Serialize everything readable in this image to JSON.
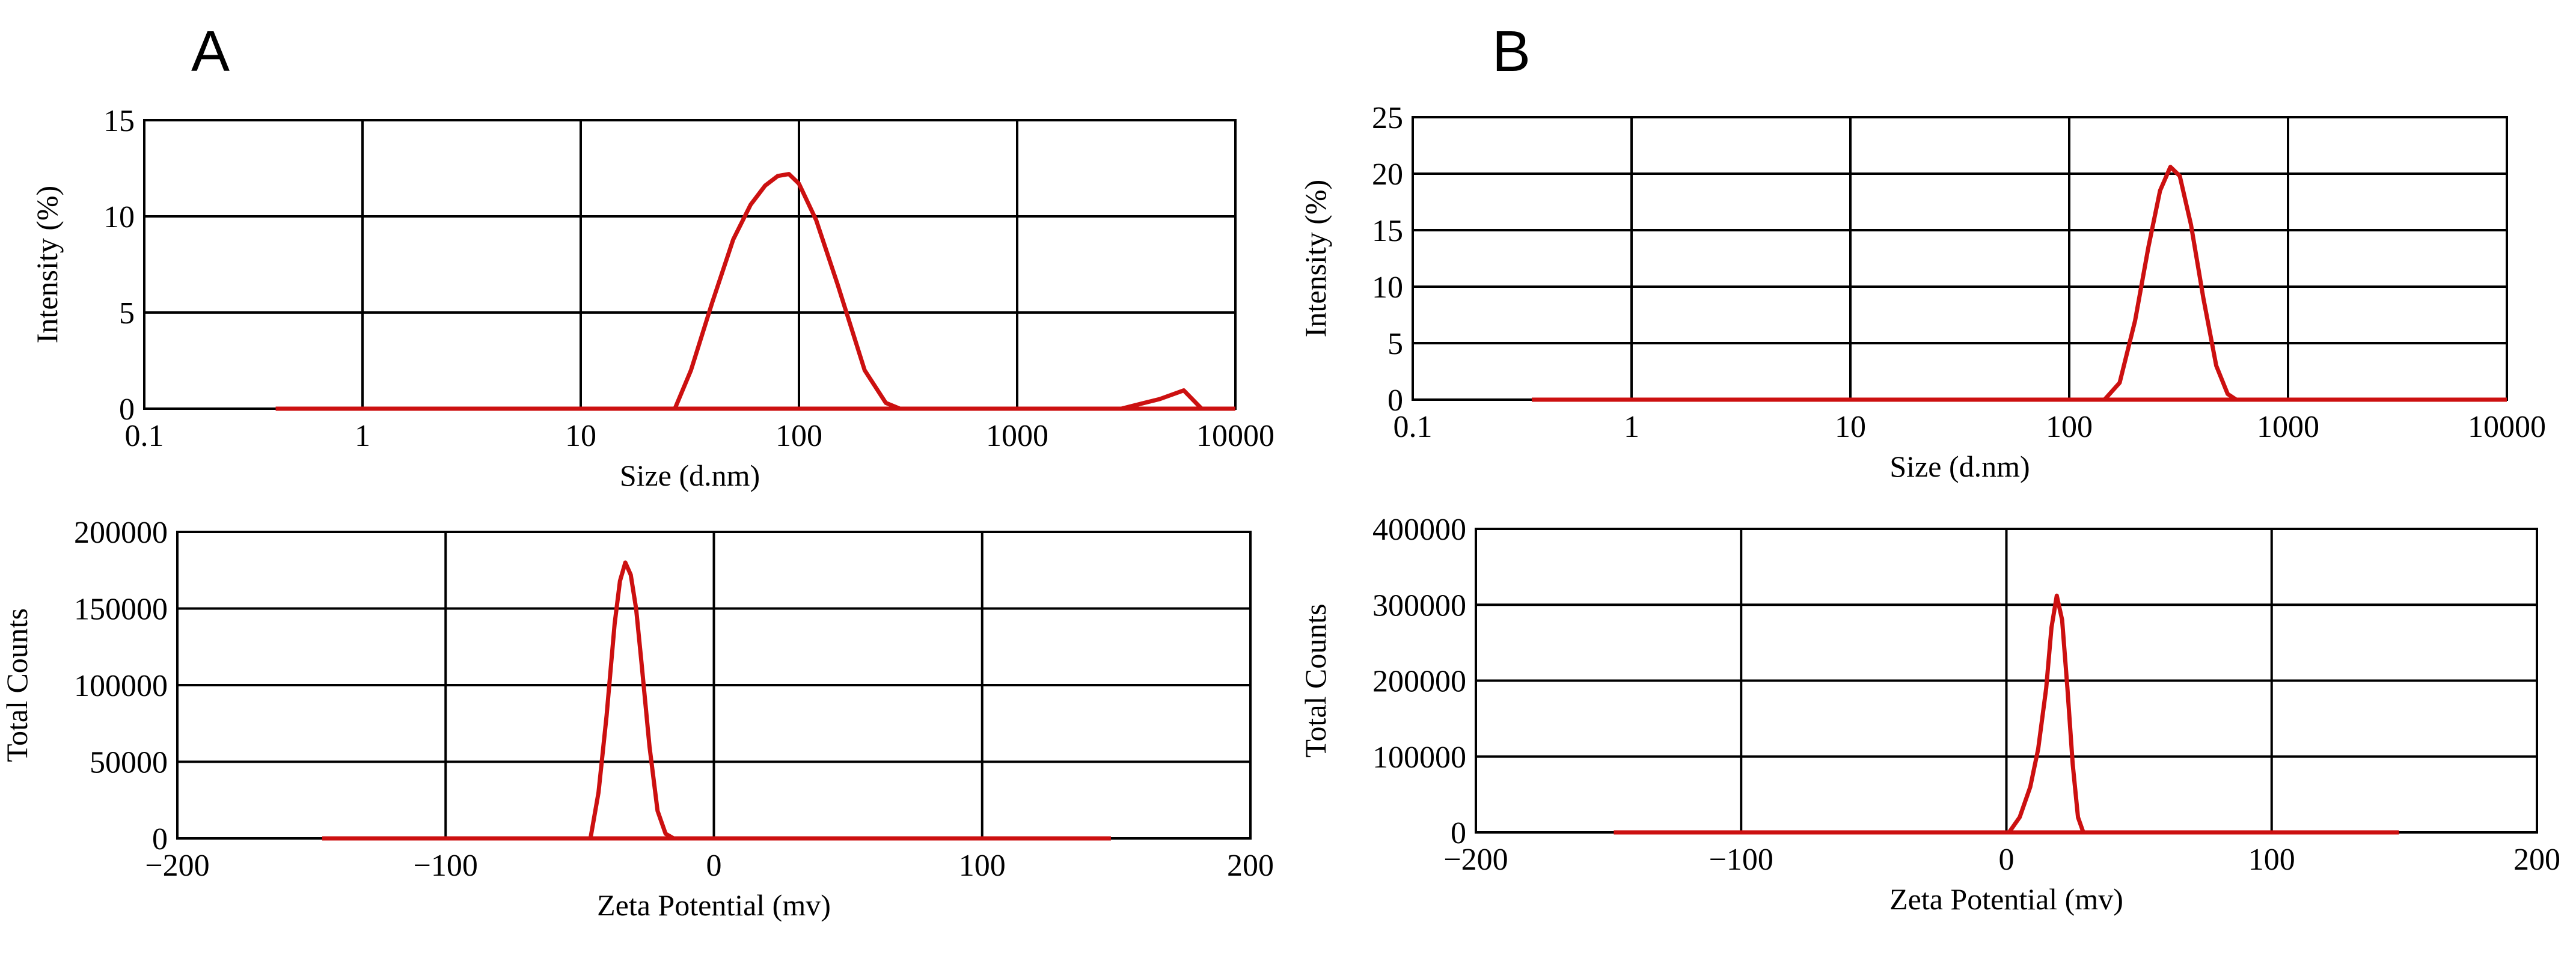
{
  "panels": [
    {
      "label": "A"
    },
    {
      "label": "B"
    }
  ],
  "chart_data": [
    {
      "id": "A-size",
      "type": "line",
      "panel": "A",
      "xscale": "log",
      "xlabel": "Size (d.nm)",
      "ylabel": "Intensity  (%)",
      "xlim": [
        0.1,
        10000
      ],
      "ylim": [
        0,
        15
      ],
      "xticks": [
        0.1,
        1,
        10,
        100,
        1000,
        10000
      ],
      "xticklabels": [
        "0.1",
        "1",
        "10",
        "100",
        "1000",
        "10000"
      ],
      "yticks": [
        0,
        5,
        10,
        15
      ],
      "yticklabels": [
        "0",
        "5",
        "10",
        "15"
      ],
      "grid": true,
      "baseline": {
        "x_from": 0.4,
        "x_to": 10000,
        "y": 0
      },
      "series": [
        {
          "name": "peak",
          "x": [
            27,
            32,
            40,
            50,
            60,
            70,
            80,
            90,
            100,
            120,
            150,
            200,
            250,
            290
          ],
          "y": [
            0,
            2.0,
            5.5,
            8.8,
            10.6,
            11.6,
            12.1,
            12.2,
            11.7,
            9.8,
            6.5,
            2.0,
            0.3,
            0
          ]
        },
        {
          "name": "minor peak",
          "x": [
            3000,
            4500,
            5800,
            7000
          ],
          "y": [
            0,
            0.5,
            0.95,
            0
          ]
        }
      ]
    },
    {
      "id": "B-size",
      "type": "line",
      "panel": "B",
      "xscale": "log",
      "xlabel": "Size (d.nm)",
      "ylabel": "Intensity  (%)",
      "xlim": [
        0.1,
        10000
      ],
      "ylim": [
        0,
        25
      ],
      "xticks": [
        0.1,
        1,
        10,
        100,
        1000,
        10000
      ],
      "xticklabels": [
        "0.1",
        "1",
        "10",
        "100",
        "1000",
        "10000"
      ],
      "yticks": [
        0,
        5,
        10,
        15,
        20,
        25
      ],
      "yticklabels": [
        "0",
        "5",
        "10",
        "15",
        "20",
        "25"
      ],
      "grid": true,
      "baseline": {
        "x_from": 0.35,
        "x_to": 10000,
        "y": 0
      },
      "series": [
        {
          "name": "peak",
          "x": [
            145,
            170,
            200,
            230,
            260,
            290,
            320,
            360,
            410,
            470,
            530,
            580
          ],
          "y": [
            0,
            1.5,
            7.0,
            13.5,
            18.5,
            20.6,
            19.8,
            15.5,
            9.0,
            3.0,
            0.5,
            0
          ]
        }
      ]
    },
    {
      "id": "A-zeta",
      "type": "line",
      "panel": "A",
      "xlabel": "Zeta Potential (mv)",
      "ylabel": "Total  Counts",
      "xlim": [
        -200,
        200
      ],
      "ylim": [
        0,
        200000
      ],
      "xticks": [
        -200,
        -100,
        0,
        100,
        200
      ],
      "xticklabels": [
        "−200",
        "−100",
        "0",
        "100",
        "200"
      ],
      "yticks": [
        0,
        50000,
        100000,
        150000,
        200000
      ],
      "yticklabels": [
        "0",
        "50000",
        "100000",
        "150000",
        "200000"
      ],
      "grid": true,
      "baseline": {
        "x_from": -146,
        "x_to": 148,
        "y": 0
      },
      "series": [
        {
          "name": "peak",
          "x": [
            -46,
            -43,
            -40,
            -37,
            -35,
            -33,
            -31,
            -29,
            -27,
            -24,
            -21,
            -18,
            -15
          ],
          "y": [
            0,
            30000,
            80000,
            140000,
            168000,
            180000,
            172000,
            150000,
            115000,
            60000,
            18000,
            3000,
            0
          ]
        }
      ]
    },
    {
      "id": "B-zeta",
      "type": "line",
      "panel": "B",
      "xlabel": "Zeta Potential (mv)",
      "ylabel": "Total  Counts",
      "xlim": [
        -200,
        200
      ],
      "ylim": [
        0,
        400000
      ],
      "xticks": [
        -200,
        -100,
        0,
        100,
        200
      ],
      "xticklabels": [
        "−200",
        "−100",
        "0",
        "100",
        "200"
      ],
      "yticks": [
        0,
        100000,
        200000,
        300000,
        400000
      ],
      "yticklabels": [
        "0",
        "100000",
        "200000",
        "300000",
        "400000"
      ],
      "grid": true,
      "baseline": {
        "x_from": -148,
        "x_to": 148,
        "y": 0
      },
      "series": [
        {
          "name": "peak",
          "x": [
            1,
            5,
            9,
            12,
            15,
            17,
            19,
            21,
            23,
            25,
            27,
            29
          ],
          "y": [
            0,
            20000,
            60000,
            110000,
            190000,
            270000,
            312000,
            280000,
            190000,
            90000,
            20000,
            0
          ]
        }
      ]
    }
  ]
}
